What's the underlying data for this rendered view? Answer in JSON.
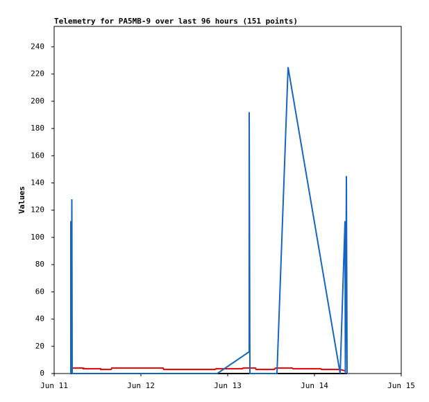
{
  "chart_data": {
    "type": "line",
    "title": "Telemetry for PA5MB-9 over last 96 hours (151 points)",
    "y_label": "Values",
    "xlim": [
      11,
      15
    ],
    "xticks": [
      {
        "value": 11,
        "label": "Jun 11"
      },
      {
        "value": 12,
        "label": "Jun 12"
      },
      {
        "value": 13,
        "label": "Jun 13"
      },
      {
        "value": 14,
        "label": "Jun 14"
      },
      {
        "value": 15,
        "label": "Jun 15"
      }
    ],
    "ylim": [
      0,
      255
    ],
    "yticks": [
      0,
      20,
      40,
      60,
      80,
      100,
      120,
      140,
      160,
      180,
      200,
      220,
      240
    ],
    "grid": false,
    "series": [
      {
        "color": "#000000",
        "x": [
          11.192,
          14.376
        ],
        "values": [
          0,
          0
        ]
      },
      {
        "color": "#e00000",
        "x": [
          11.192,
          11.336,
          11.336,
          11.536,
          11.536,
          11.656,
          11.664,
          12.256,
          12.264,
          12.856,
          12.864,
          13.168,
          13.176,
          13.32,
          13.328,
          13.536,
          13.552,
          13.744,
          13.752,
          14.072,
          14.08,
          14.296,
          14.352
        ],
        "values": [
          4,
          4,
          3.5,
          3.5,
          3,
          3,
          4,
          4,
          3,
          3,
          3.5,
          3.5,
          4,
          4,
          3,
          3,
          4,
          4,
          3.5,
          3.5,
          3,
          3,
          2
        ]
      },
      {
        "color": "#1565c0",
        "x": [
          11.192,
          11.192,
          11.198,
          11.204,
          11.208,
          12.88,
          13.248,
          13.248,
          13.256,
          13.568,
          13.696,
          14.296,
          14.352,
          14.356,
          14.364,
          14.368,
          14.376
        ],
        "values": [
          0,
          112,
          0,
          128,
          0,
          0,
          16,
          192,
          0,
          0,
          225,
          0,
          112,
          0,
          84,
          145,
          0
        ]
      }
    ]
  }
}
